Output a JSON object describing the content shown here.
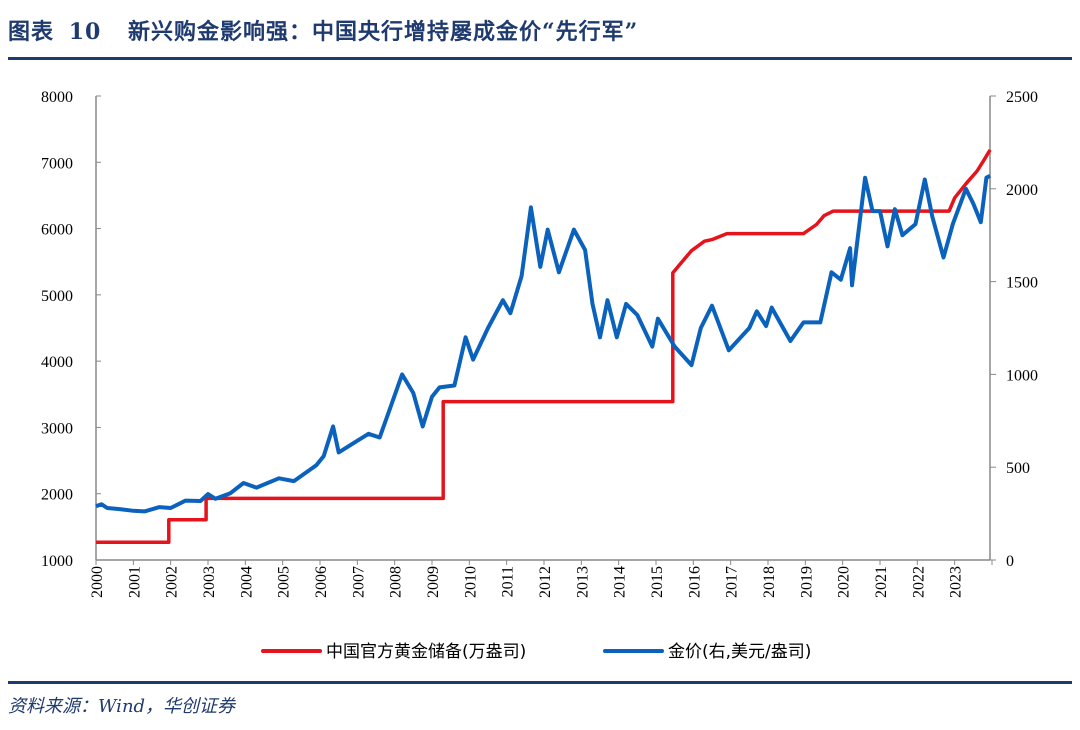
{
  "title": {
    "prefix": "图表",
    "number": "10",
    "text": "新兴购金影响强：中国央行增持屡成金价“先行军”"
  },
  "source": "资料来源：Wind，华创证券",
  "colors": {
    "reserves": "#e5131b",
    "price": "#0a62bd",
    "title": "#1f3a6e",
    "axis": "#888888"
  },
  "chart_data": {
    "type": "line",
    "x_range": [
      2000,
      2024
    ],
    "x_ticks": [
      "2000",
      "2001",
      "2002",
      "2003",
      "2004",
      "2005",
      "2006",
      "2007",
      "2008",
      "2009",
      "2010",
      "2011",
      "2012",
      "2013",
      "2014",
      "2015",
      "2016",
      "2017",
      "2018",
      "2019",
      "2020",
      "2021",
      "2022",
      "2023"
    ],
    "y_left": {
      "range": [
        1000,
        8000
      ],
      "ticks": [
        "1000",
        "2000",
        "3000",
        "4000",
        "5000",
        "6000",
        "7000",
        "8000"
      ]
    },
    "y_right": {
      "range": [
        0,
        2500
      ],
      "ticks": [
        "0",
        "500",
        "1000",
        "1500",
        "2000",
        "2500"
      ]
    },
    "legend_position": "bottom",
    "series": [
      {
        "name": "中国官方黄金储备(万盎司)",
        "axis": "left",
        "step": true,
        "points": [
          [
            2000,
            1267
          ],
          [
            2001.95,
            1267
          ],
          [
            2001.95,
            1608
          ],
          [
            2002.95,
            1608
          ],
          [
            2002.95,
            1929
          ],
          [
            2009.3,
            1929
          ],
          [
            2009.3,
            3389
          ],
          [
            2015.45,
            3389
          ],
          [
            2015.45,
            5332
          ],
          [
            2015.7,
            5500
          ],
          [
            2015.95,
            5666
          ],
          [
            2016.3,
            5810
          ],
          [
            2016.5,
            5833
          ],
          [
            2016.9,
            5924
          ],
          [
            2018.95,
            5924
          ],
          [
            2019.3,
            6062
          ],
          [
            2019.5,
            6194
          ],
          [
            2019.75,
            6264
          ],
          [
            2022.85,
            6264
          ],
          [
            2023.0,
            6464
          ],
          [
            2023.3,
            6676
          ],
          [
            2023.6,
            6869
          ],
          [
            2023.8,
            7046
          ],
          [
            2023.95,
            7187
          ]
        ]
      },
      {
        "name": "金价(右,美元/盎司)",
        "axis": "right",
        "points": [
          [
            2000.0,
            290
          ],
          [
            2000.15,
            300
          ],
          [
            2000.3,
            280
          ],
          [
            2000.6,
            275
          ],
          [
            2001.0,
            265
          ],
          [
            2001.3,
            262
          ],
          [
            2001.7,
            285
          ],
          [
            2002.0,
            280
          ],
          [
            2002.4,
            320
          ],
          [
            2002.8,
            318
          ],
          [
            2003.0,
            355
          ],
          [
            2003.2,
            330
          ],
          [
            2003.6,
            360
          ],
          [
            2003.95,
            415
          ],
          [
            2004.3,
            390
          ],
          [
            2004.9,
            440
          ],
          [
            2005.3,
            425
          ],
          [
            2005.9,
            510
          ],
          [
            2006.1,
            560
          ],
          [
            2006.35,
            720
          ],
          [
            2006.5,
            580
          ],
          [
            2006.9,
            630
          ],
          [
            2007.3,
            680
          ],
          [
            2007.6,
            660
          ],
          [
            2007.9,
            830
          ],
          [
            2008.2,
            1000
          ],
          [
            2008.5,
            900
          ],
          [
            2008.75,
            720
          ],
          [
            2009.0,
            880
          ],
          [
            2009.2,
            930
          ],
          [
            2009.6,
            940
          ],
          [
            2009.9,
            1200
          ],
          [
            2010.1,
            1080
          ],
          [
            2010.5,
            1250
          ],
          [
            2010.9,
            1400
          ],
          [
            2011.1,
            1330
          ],
          [
            2011.4,
            1530
          ],
          [
            2011.65,
            1900
          ],
          [
            2011.9,
            1580
          ],
          [
            2012.1,
            1780
          ],
          [
            2012.4,
            1550
          ],
          [
            2012.8,
            1780
          ],
          [
            2013.1,
            1670
          ],
          [
            2013.3,
            1380
          ],
          [
            2013.5,
            1200
          ],
          [
            2013.7,
            1400
          ],
          [
            2013.95,
            1200
          ],
          [
            2014.2,
            1380
          ],
          [
            2014.5,
            1320
          ],
          [
            2014.9,
            1150
          ],
          [
            2015.05,
            1300
          ],
          [
            2015.5,
            1150
          ],
          [
            2015.95,
            1050
          ],
          [
            2016.2,
            1250
          ],
          [
            2016.5,
            1370
          ],
          [
            2016.95,
            1130
          ],
          [
            2017.5,
            1250
          ],
          [
            2017.7,
            1340
          ],
          [
            2017.95,
            1260
          ],
          [
            2018.1,
            1360
          ],
          [
            2018.6,
            1180
          ],
          [
            2018.95,
            1280
          ],
          [
            2019.4,
            1280
          ],
          [
            2019.7,
            1550
          ],
          [
            2019.95,
            1510
          ],
          [
            2020.2,
            1680
          ],
          [
            2020.25,
            1480
          ],
          [
            2020.4,
            1730
          ],
          [
            2020.6,
            2060
          ],
          [
            2020.8,
            1880
          ],
          [
            2021.0,
            1880
          ],
          [
            2021.2,
            1690
          ],
          [
            2021.4,
            1890
          ],
          [
            2021.6,
            1750
          ],
          [
            2021.95,
            1810
          ],
          [
            2022.2,
            2050
          ],
          [
            2022.4,
            1850
          ],
          [
            2022.7,
            1630
          ],
          [
            2022.95,
            1810
          ],
          [
            2023.3,
            2000
          ],
          [
            2023.5,
            1920
          ],
          [
            2023.7,
            1820
          ],
          [
            2023.85,
            2060
          ],
          [
            2023.95,
            2070
          ]
        ]
      }
    ]
  }
}
